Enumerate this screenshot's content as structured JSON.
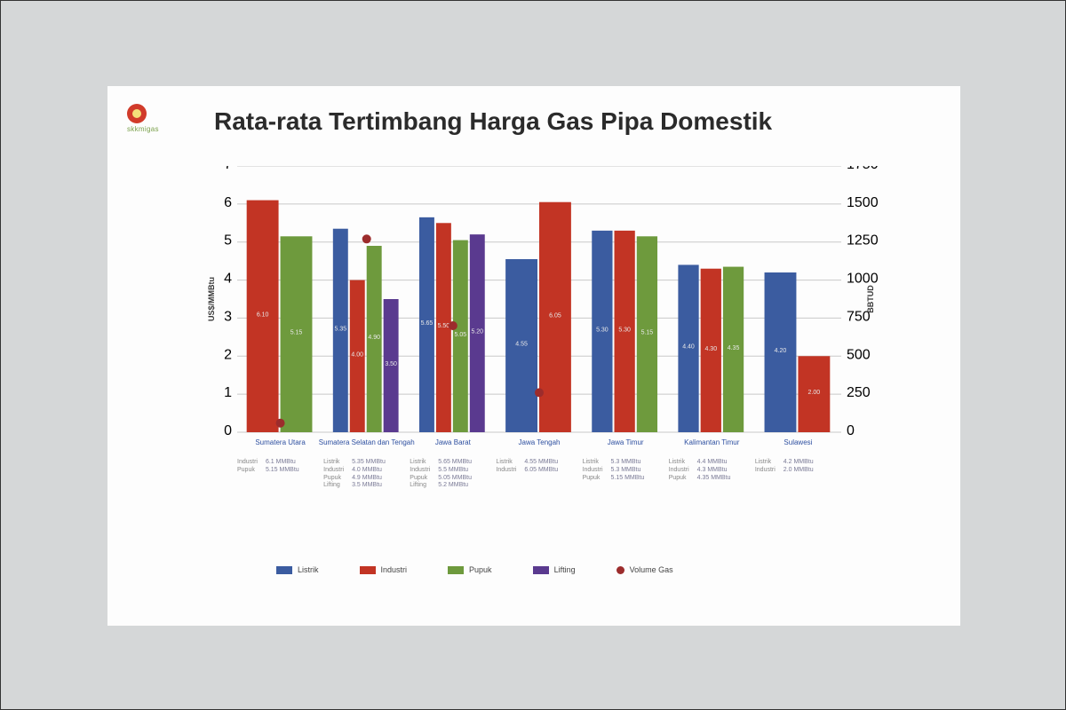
{
  "title": "Rata-rata Tertimbang Harga Gas Pipa Domestik",
  "logo_text": "skkmigas",
  "chart": {
    "type": "bar",
    "background_color": "#fdfdfd",
    "grid_color": "#c9c9c9",
    "y_left": {
      "label": "US$/MMBtu",
      "min": 0,
      "max": 7,
      "tick_step": 1
    },
    "y_right": {
      "label": "BBTUD",
      "min": 0,
      "max": 1750,
      "ticks": [
        0,
        250,
        500,
        750,
        1000,
        1250,
        1500,
        1750
      ]
    },
    "bar_width": 0.78,
    "text_color": "#2b2b2b",
    "title_fontsize": 28,
    "axis_fontsize": 8,
    "categories": [
      "Sumatera Utara",
      "Sumatera Selatan dan Tengah",
      "Jawa Barat",
      "Jawa Tengah",
      "Jawa Timur",
      "Kalimantan Timur",
      "Sulawesi"
    ],
    "series": [
      {
        "name": "Listrik",
        "color": "#3b5ca0",
        "values": [
          null,
          5.35,
          5.65,
          4.55,
          5.3,
          4.4,
          4.2
        ]
      },
      {
        "name": "Industri",
        "color": "#c23424",
        "values": [
          6.1,
          4.0,
          5.5,
          6.05,
          5.3,
          4.3,
          2.0
        ]
      },
      {
        "name": "Pupuk",
        "color": "#6e9a3d",
        "values": [
          5.15,
          4.9,
          5.05,
          null,
          5.15,
          4.35,
          null
        ]
      },
      {
        "name": "Lifting",
        "color": "#5a3a8f",
        "values": [
          null,
          3.5,
          5.2,
          null,
          null,
          null,
          null
        ]
      }
    ],
    "scatter": {
      "name": "Volume Gas",
      "color": "#9c2c2c",
      "marker": "circle",
      "marker_size": 5,
      "values_right_axis": [
        60,
        1270,
        700,
        260,
        null,
        null,
        null
      ]
    },
    "subtext": [
      [
        {
          "k": "Industri",
          "v": "6.1 MMBtu"
        },
        {
          "k": "Pupuk",
          "v": "5.15 MMBtu"
        }
      ],
      [
        {
          "k": "Listrik",
          "v": "5.35 MMBtu"
        },
        {
          "k": "Industri",
          "v": "4.0 MMBtu"
        },
        {
          "k": "Pupuk",
          "v": "4.9 MMBtu"
        },
        {
          "k": "Lifting",
          "v": "3.5 MMBtu"
        }
      ],
      [
        {
          "k": "Listrik",
          "v": "5.65 MMBtu"
        },
        {
          "k": "Industri",
          "v": "5.5 MMBtu"
        },
        {
          "k": "Pupuk",
          "v": "5.05 MMBtu"
        },
        {
          "k": "Lifting",
          "v": "5.2 MMBtu"
        }
      ],
      [
        {
          "k": "Listrik",
          "v": "4.55 MMBtu"
        },
        {
          "k": "Industri",
          "v": "6.05 MMBtu"
        }
      ],
      [
        {
          "k": "Listrik",
          "v": "5.3 MMBtu"
        },
        {
          "k": "Industri",
          "v": "5.3 MMBtu"
        },
        {
          "k": "Pupuk",
          "v": "5.15 MMBtu"
        }
      ],
      [
        {
          "k": "Listrik",
          "v": "4.4 MMBtu"
        },
        {
          "k": "Industri",
          "v": "4.3 MMBtu"
        },
        {
          "k": "Pupuk",
          "v": "4.35 MMBtu"
        }
      ],
      [
        {
          "k": "Listrik",
          "v": "4.2 MMBtu"
        },
        {
          "k": "Industri",
          "v": "2.0 MMBtu"
        }
      ]
    ],
    "legend_items": [
      {
        "label": "Listrik",
        "swatch": "#3b5ca0",
        "shape": "rect"
      },
      {
        "label": "Industri",
        "swatch": "#c23424",
        "shape": "rect"
      },
      {
        "label": "Pupuk",
        "swatch": "#6e9a3d",
        "shape": "rect"
      },
      {
        "label": "Lifting",
        "swatch": "#5a3a8f",
        "shape": "rect"
      },
      {
        "label": "Volume Gas",
        "swatch": "#9c2c2c",
        "shape": "dot"
      }
    ]
  }
}
